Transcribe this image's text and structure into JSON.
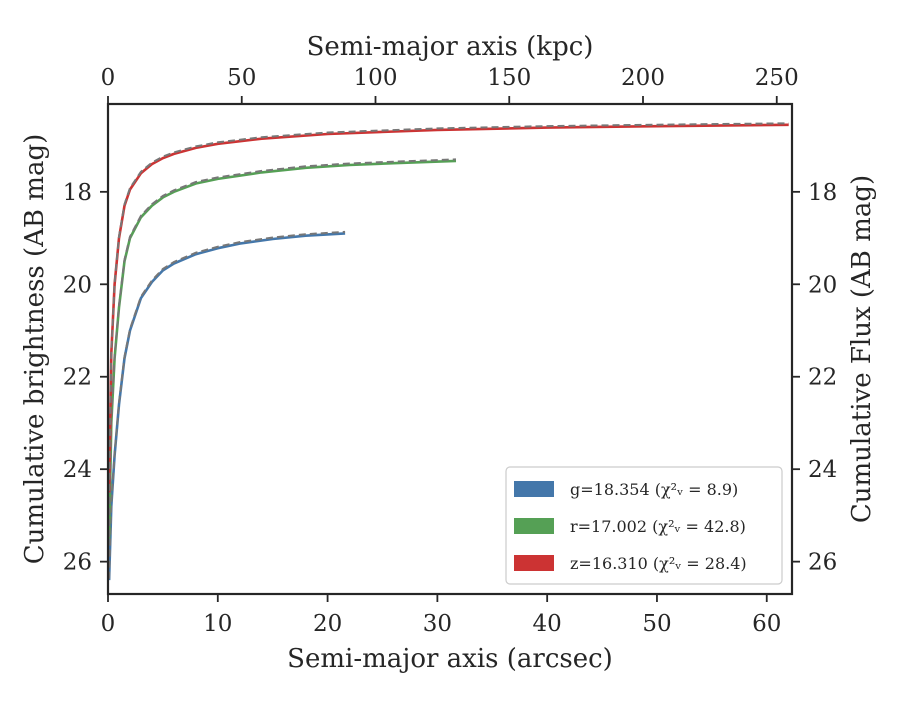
{
  "chart_data": {
    "type": "line",
    "xlabel": "Semi-major axis (arcsec)",
    "ylabel": "Cumulative brightness (AB mag)",
    "x2label": "Semi-major axis (kpc)",
    "y2label": "Cumulative Flux (AB mag)",
    "xlim": [
      0,
      62.3
    ],
    "ylim": [
      26.7,
      16.1
    ],
    "x2lim": [
      0,
      255.7
    ],
    "y_inverted": true,
    "xticks": [
      0,
      10,
      20,
      30,
      40,
      50,
      60
    ],
    "yticks": [
      18,
      20,
      22,
      24,
      26
    ],
    "x2ticks": [
      0,
      50,
      100,
      150,
      200,
      250
    ],
    "y2ticks": [
      18,
      20,
      22,
      24,
      26
    ],
    "legend_position": "bottom-right",
    "series": [
      {
        "band": "g",
        "legend_label": "g=18.354",
        "chi_label": "(χ²ᵥ = 8.9)",
        "color": "#4477aa",
        "x": [
          0.1,
          0.3,
          0.6,
          1.0,
          1.5,
          2.0,
          3.0,
          4.0,
          5.0,
          6.0,
          8.0,
          10.0,
          12.0,
          15.0,
          18.0,
          21.6
        ],
        "y": [
          26.4,
          24.8,
          23.7,
          22.6,
          21.6,
          21.0,
          20.3,
          19.95,
          19.7,
          19.55,
          19.35,
          19.22,
          19.12,
          19.02,
          18.95,
          18.9
        ]
      },
      {
        "band": "r",
        "legend_label": "r=17.002",
        "chi_label": "(χ²ᵥ = 42.8)",
        "color": "#55a055",
        "x": [
          0.1,
          0.3,
          0.6,
          1.0,
          1.5,
          2.0,
          3.0,
          4.0,
          5.0,
          6.0,
          8.0,
          10.0,
          14.0,
          18.0,
          22.0,
          26.0,
          31.7
        ],
        "y": [
          25.5,
          23.0,
          21.6,
          20.5,
          19.5,
          19.0,
          18.55,
          18.3,
          18.12,
          18.0,
          17.82,
          17.72,
          17.58,
          17.48,
          17.42,
          17.38,
          17.33
        ]
      },
      {
        "band": "z",
        "legend_label": "z=16.310",
        "chi_label": "(χ²ᵥ = 28.4)",
        "color": "#cc3333",
        "x": [
          0.1,
          0.3,
          0.6,
          1.0,
          1.5,
          2.0,
          3.0,
          4.0,
          5.0,
          6.0,
          8.0,
          10.0,
          14.0,
          20.0,
          30.0,
          40.0,
          50.0,
          62.0
        ],
        "y": [
          24.5,
          21.5,
          20.0,
          19.0,
          18.3,
          17.95,
          17.6,
          17.4,
          17.27,
          17.18,
          17.05,
          16.96,
          16.85,
          16.75,
          16.66,
          16.61,
          16.58,
          16.55
        ]
      }
    ],
    "model_line_color": "#777777"
  }
}
